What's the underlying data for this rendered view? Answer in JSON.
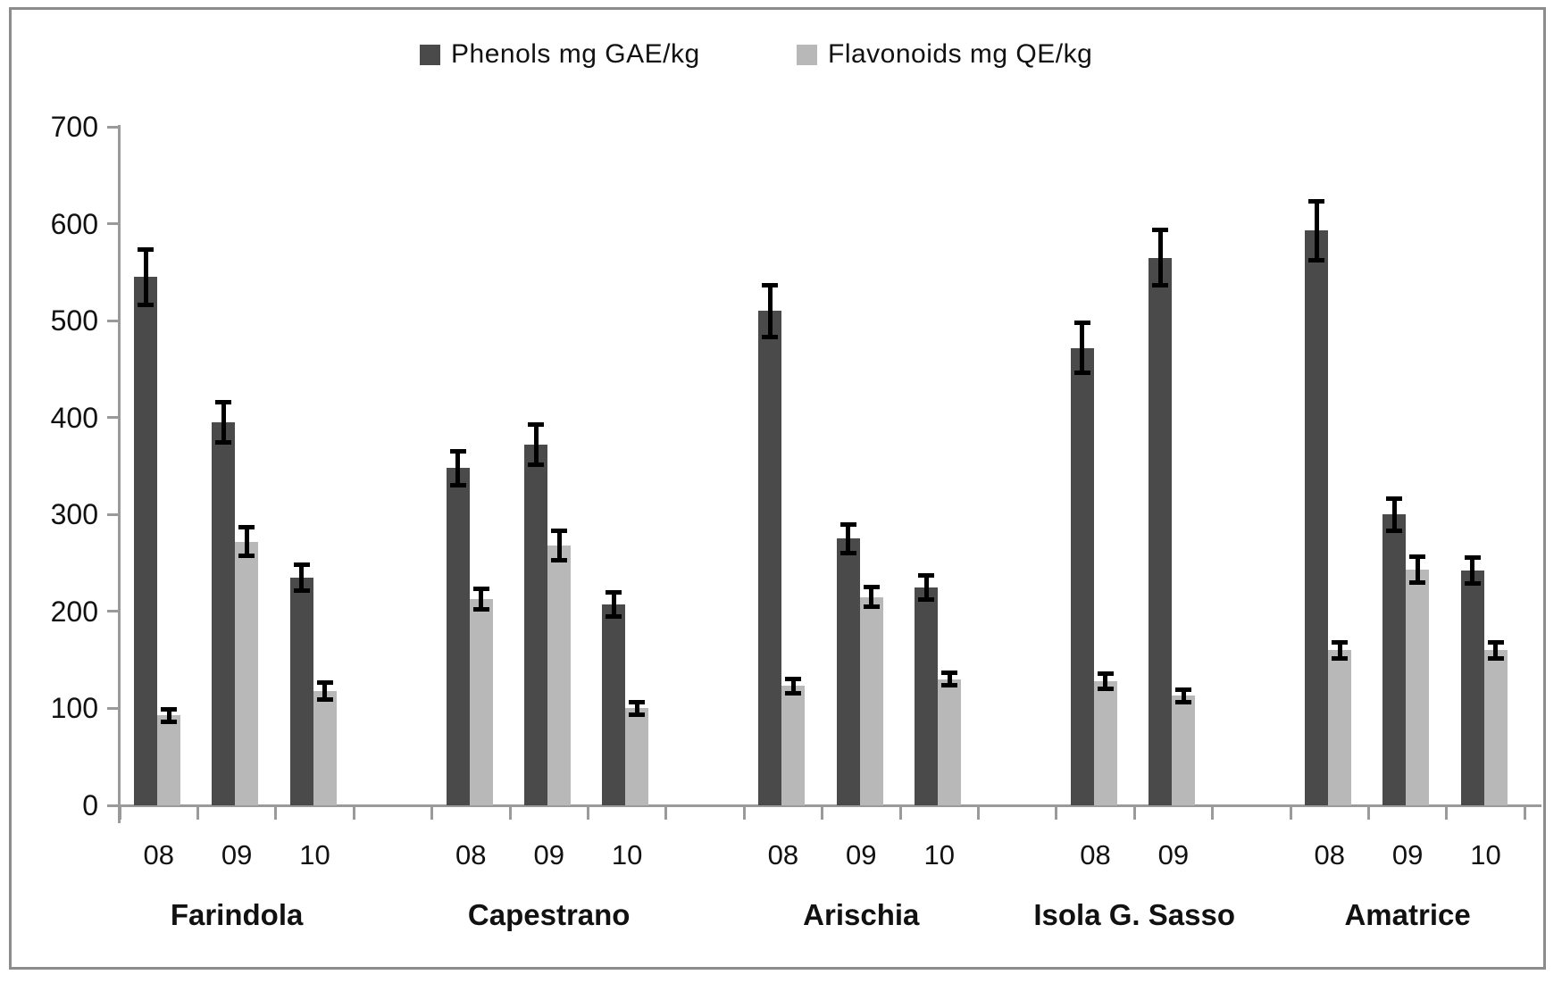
{
  "figure": {
    "background_color": "#ffffff",
    "frame_color": "#8c8c8c"
  },
  "chart_data": {
    "type": "bar",
    "title": "",
    "xlabel": "",
    "ylabel": "",
    "grid": false,
    "legend_position": "top-center",
    "error_bars": true,
    "ylim": [
      0,
      700
    ],
    "y_tick_step": 100,
    "y_tick_labels": [
      "0",
      "100",
      "200",
      "300",
      "400",
      "500",
      "600",
      "700"
    ],
    "axis_color": "#9a9a9a",
    "error_bar_color": "#000000",
    "legend": [
      {
        "label": "Phenols mg GAE/kg",
        "color": "#4a4a4a"
      },
      {
        "label": "Flavonoids mg QE/kg",
        "color": "#b8b8b8"
      }
    ],
    "groups": [
      {
        "name": "Farindola",
        "years": [
          "08",
          "09",
          "10"
        ],
        "phenols": [
          545,
          395,
          235
        ],
        "phenols_err": [
          28,
          20,
          13
        ],
        "flavonoids": [
          93,
          272,
          118
        ],
        "flavonoids_err": [
          6,
          14,
          8
        ]
      },
      {
        "name": "Capestrano",
        "years": [
          "08",
          "09",
          "10"
        ],
        "phenols": [
          348,
          372,
          207
        ],
        "phenols_err": [
          17,
          20,
          12
        ],
        "flavonoids": [
          213,
          268,
          100
        ],
        "flavonoids_err": [
          10,
          15,
          6
        ]
      },
      {
        "name": "Arischia",
        "years": [
          "08",
          "09",
          "10"
        ],
        "phenols": [
          510,
          275,
          225
        ],
        "phenols_err": [
          26,
          14,
          12
        ],
        "flavonoids": [
          123,
          215,
          130
        ],
        "flavonoids_err": [
          7,
          10,
          6
        ]
      },
      {
        "name": "Isola G. Sasso",
        "years": [
          "08",
          "09"
        ],
        "phenols": [
          472,
          565
        ],
        "phenols_err": [
          25,
          28
        ],
        "flavonoids": [
          128,
          113
        ],
        "flavonoids_err": [
          7,
          6
        ]
      },
      {
        "name": "Amatrice",
        "years": [
          "08",
          "09",
          "10"
        ],
        "phenols": [
          593,
          300,
          242
        ],
        "phenols_err": [
          30,
          16,
          13
        ],
        "flavonoids": [
          160,
          243,
          160
        ],
        "flavonoids_err": [
          8,
          13,
          8
        ]
      }
    ]
  }
}
